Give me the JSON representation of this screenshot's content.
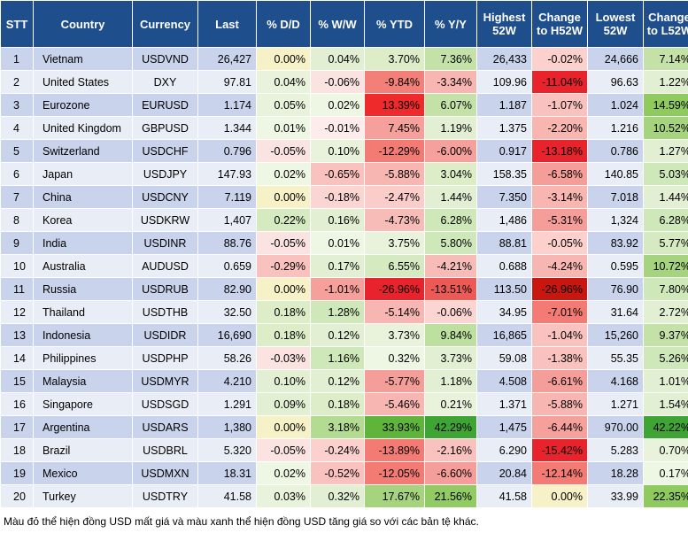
{
  "headers": [
    "STT",
    "Country",
    "Currency",
    "Last",
    "% D/D",
    "% W/W",
    "% YTD",
    "% Y/Y",
    "Highest 52W",
    "Change to H52W",
    "Lowest 52W",
    "Change to L52W"
  ],
  "rows": [
    [
      "1",
      "Vietnam",
      "USDVND",
      "26,427",
      "0.00%",
      "0.04%",
      "3.70%",
      "7.36%",
      "26,433",
      "-0.02%",
      "24,666",
      "7.14%"
    ],
    [
      "2",
      "United States",
      "DXY",
      "97.81",
      "0.04%",
      "-0.06%",
      "-9.84%",
      "-3.34%",
      "109.96",
      "-11.04%",
      "96.63",
      "1.22%"
    ],
    [
      "3",
      "Eurozone",
      "EURUSD",
      "1.174",
      "0.05%",
      "0.02%",
      "13.39%",
      "6.07%",
      "1.187",
      "-1.07%",
      "1.024",
      "14.59%"
    ],
    [
      "4",
      "United Kingdom",
      "GBPUSD",
      "1.344",
      "0.01%",
      "-0.01%",
      "7.45%",
      "1.19%",
      "1.375",
      "-2.20%",
      "1.216",
      "10.52%"
    ],
    [
      "5",
      "Switzerland",
      "USDCHF",
      "0.796",
      "-0.05%",
      "0.10%",
      "-12.29%",
      "-6.00%",
      "0.917",
      "-13.18%",
      "0.786",
      "1.27%"
    ],
    [
      "6",
      "Japan",
      "USDJPY",
      "147.93",
      "0.02%",
      "-0.65%",
      "-5.88%",
      "3.04%",
      "158.35",
      "-6.58%",
      "140.85",
      "5.03%"
    ],
    [
      "7",
      "China",
      "USDCNY",
      "7.119",
      "0.00%",
      "-0.18%",
      "-2.47%",
      "1.44%",
      "7.350",
      "-3.14%",
      "7.018",
      "1.44%"
    ],
    [
      "8",
      "Korea",
      "USDKRW",
      "1,407",
      "0.22%",
      "0.16%",
      "-4.73%",
      "6.28%",
      "1,486",
      "-5.31%",
      "1,324",
      "6.28%"
    ],
    [
      "9",
      "India",
      "USDINR",
      "88.76",
      "-0.05%",
      "0.01%",
      "3.75%",
      "5.80%",
      "88.81",
      "-0.05%",
      "83.92",
      "5.77%"
    ],
    [
      "10",
      "Australia",
      "AUDUSD",
      "0.659",
      "-0.29%",
      "0.17%",
      "6.55%",
      "-4.21%",
      "0.688",
      "-4.24%",
      "0.595",
      "10.72%"
    ],
    [
      "11",
      "Russia",
      "USDRUB",
      "82.90",
      "0.00%",
      "-1.01%",
      "-26.96%",
      "-13.51%",
      "113.50",
      "-26.96%",
      "76.90",
      "7.80%"
    ],
    [
      "12",
      "Thailand",
      "USDTHB",
      "32.50",
      "0.18%",
      "1.28%",
      "-5.14%",
      "-0.06%",
      "34.95",
      "-7.01%",
      "31.64",
      "2.72%"
    ],
    [
      "13",
      "Indonesia",
      "USDIDR",
      "16,690",
      "0.18%",
      "0.12%",
      "3.73%",
      "9.84%",
      "16,865",
      "-1.04%",
      "15,260",
      "9.37%"
    ],
    [
      "14",
      "Philippines",
      "USDPHP",
      "58.26",
      "-0.03%",
      "1.16%",
      "0.32%",
      "3.73%",
      "59.08",
      "-1.38%",
      "55.35",
      "5.26%"
    ],
    [
      "15",
      "Malaysia",
      "USDMYR",
      "4.210",
      "0.10%",
      "0.12%",
      "-5.77%",
      "1.18%",
      "4.508",
      "-6.61%",
      "4.168",
      "1.01%"
    ],
    [
      "16",
      "Singapore",
      "USDSGD",
      "1.291",
      "0.09%",
      "0.18%",
      "-5.46%",
      "0.21%",
      "1.371",
      "-5.88%",
      "1.271",
      "1.54%"
    ],
    [
      "17",
      "Argentina",
      "USDARS",
      "1,380",
      "0.00%",
      "3.18%",
      "33.93%",
      "42.29%",
      "1,475",
      "-6.44%",
      "970.00",
      "42.22%"
    ],
    [
      "18",
      "Brazil",
      "USDBRL",
      "5.320",
      "-0.05%",
      "-0.24%",
      "-13.89%",
      "-2.16%",
      "6.290",
      "-15.42%",
      "5.283",
      "0.70%"
    ],
    [
      "19",
      "Mexico",
      "USDMXN",
      "18.31",
      "0.02%",
      "-0.52%",
      "-12.05%",
      "-6.60%",
      "20.84",
      "-12.14%",
      "18.28",
      "0.17%"
    ],
    [
      "20",
      "Turkey",
      "USDTRY",
      "41.58",
      "0.03%",
      "0.32%",
      "17.67%",
      "21.56%",
      "41.58",
      "0.00%",
      "33.99",
      "22.35%"
    ]
  ],
  "cell_colors": {
    "0": {
      "4": "#f6f1c6",
      "5": "#e2efd2",
      "6": "#dcedc8",
      "7": "#c4e2a8",
      "9": "#fbd0cd",
      "11": "#c4e2a8"
    },
    "1": {
      "4": "#e9f3dc",
      "5": "#fbe3e1",
      "6": "#f27f78",
      "7": "#f8b6b2",
      "9": "#e8232b",
      "11": "#e2efd2"
    },
    "2": {
      "4": "#e9f3dc",
      "5": "#eef6e4",
      "6": "#ee2a2a",
      "7": "#c4e2a8",
      "9": "#f9c2be",
      "11": "#8fca5e"
    },
    "3": {
      "4": "#eef6e4",
      "5": "#fdeceb",
      "6": "#f5a09b",
      "7": "#e2efd2",
      "9": "#f9b5b0",
      "11": "#a6d47e"
    },
    "4": {
      "4": "#fbe3e1",
      "5": "#e9f3dc",
      "6": "#f37b74",
      "7": "#f5a09b",
      "9": "#e8232b",
      "11": "#e2efd2"
    },
    "5": {
      "4": "#eef6e4",
      "5": "#f9c2be",
      "6": "#f8b6b2",
      "7": "#dcedc8",
      "9": "#f59d98",
      "11": "#cfe8b9"
    },
    "6": {
      "4": "#f6f1c6",
      "5": "#fbd5d2",
      "6": "#fbcdca",
      "7": "#e2efd2",
      "9": "#f9b5b0",
      "11": "#e2efd2"
    },
    "7": {
      "4": "#d5eac0",
      "5": "#e2efd2",
      "6": "#f8bcb8",
      "7": "#cfe8b9",
      "9": "#f59d98",
      "11": "#cfe8b9"
    },
    "8": {
      "4": "#fbe3e1",
      "5": "#eef6e4",
      "6": "#e9f3dc",
      "7": "#cfe8b9",
      "9": "#fbd0cd",
      "11": "#d5eac0"
    },
    "9": {
      "4": "#f9c2be",
      "5": "#e2efd2",
      "6": "#d5eac0",
      "7": "#f8bcb8",
      "9": "#f8b6b2",
      "11": "#a6d47e"
    },
    "10": {
      "4": "#f6f1c6",
      "5": "#f5a09b",
      "6": "#e8232b",
      "7": "#ed5a55",
      "9": "#c9170f",
      "11": "#cfe8b9"
    },
    "11": {
      "4": "#dcedc8",
      "5": "#cfe8b9",
      "6": "#f8b6b2",
      "7": "#fbd5d2",
      "9": "#f37b74",
      "11": "#e2efd2"
    },
    "12": {
      "4": "#dcedc8",
      "5": "#e2efd2",
      "6": "#e9f3dc",
      "7": "#bddf9f",
      "9": "#f9c2be",
      "11": "#c4e2a8"
    },
    "13": {
      "4": "#fbe3e1",
      "5": "#cfe8b9",
      "6": "#eef6e4",
      "7": "#e2efd2",
      "9": "#f9c2be",
      "11": "#cfe8b9"
    },
    "14": {
      "4": "#e2efd2",
      "5": "#e2efd2",
      "6": "#f59d98",
      "7": "#e2efd2",
      "9": "#f59d98",
      "11": "#e2efd2"
    },
    "15": {
      "4": "#e2efd2",
      "5": "#dcedc8",
      "6": "#f8b6b2",
      "7": "#e9f3dc",
      "9": "#f8b6b2",
      "11": "#e2efd2"
    },
    "16": {
      "4": "#f6f1c6",
      "5": "#b4db92",
      "6": "#5fb43c",
      "7": "#3ea434",
      "9": "#f5a09b",
      "11": "#3ea434"
    },
    "17": {
      "4": "#fbe3e1",
      "5": "#fbd0cd",
      "6": "#f37b74",
      "7": "#f9c2be",
      "9": "#e8232b",
      "11": "#e9f3dc"
    },
    "18": {
      "4": "#eef6e4",
      "5": "#f9c2be",
      "6": "#f37b74",
      "7": "#f59d98",
      "9": "#f37b74",
      "11": "#eef6e4"
    },
    "19": {
      "4": "#e9f3dc",
      "5": "#e2efd2",
      "6": "#a6d47e",
      "7": "#92cb63",
      "9": "#f6f1c6",
      "11": "#8fca5e"
    }
  },
  "note": "Màu đỏ thể hiện đồng USD mất giá và màu xanh thể hiện đồng USD tăng giá so với các bản tệ khác."
}
